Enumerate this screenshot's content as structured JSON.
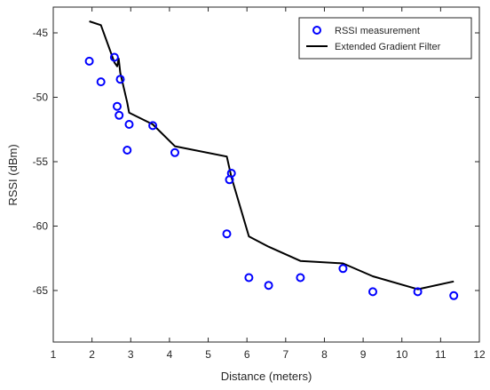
{
  "chart_data": {
    "type": "scatter",
    "xlabel": "Distance (meters)",
    "ylabel": "RSSI (dBm)",
    "xlim": [
      1,
      12
    ],
    "ylim": [
      -69,
      -43
    ],
    "xticks": [
      1,
      2,
      3,
      4,
      5,
      6,
      7,
      8,
      9,
      10,
      11,
      12
    ],
    "yticks": [
      -45,
      -50,
      -55,
      -60,
      -65
    ],
    "grid": false,
    "legend_position": "top-right",
    "series": [
      {
        "name": "RSSI measurement",
        "kind": "markers",
        "marker": "circle",
        "color": "#0000ff",
        "points": [
          [
            1.93,
            -47.2
          ],
          [
            2.23,
            -48.8
          ],
          [
            2.58,
            -46.9
          ],
          [
            2.65,
            -50.7
          ],
          [
            2.7,
            -51.4
          ],
          [
            2.73,
            -48.6
          ],
          [
            2.91,
            -54.1
          ],
          [
            2.96,
            -52.1
          ],
          [
            3.57,
            -52.2
          ],
          [
            4.14,
            -54.3
          ],
          [
            5.48,
            -60.6
          ],
          [
            5.55,
            -56.4
          ],
          [
            5.6,
            -55.9
          ],
          [
            6.05,
            -64.0
          ],
          [
            6.56,
            -64.6
          ],
          [
            7.38,
            -64.0
          ],
          [
            8.48,
            -63.3
          ],
          [
            9.25,
            -65.1
          ],
          [
            10.41,
            -65.1
          ],
          [
            11.34,
            -65.4
          ]
        ]
      },
      {
        "name": "Extended Gradient Filter",
        "kind": "line",
        "color": "#000000",
        "points": [
          [
            1.93,
            -44.1
          ],
          [
            2.23,
            -44.4
          ],
          [
            2.58,
            -47.3
          ],
          [
            2.65,
            -47.6
          ],
          [
            2.69,
            -47.0
          ],
          [
            2.73,
            -48.1
          ],
          [
            2.91,
            -50.4
          ],
          [
            2.96,
            -51.2
          ],
          [
            3.57,
            -52.1
          ],
          [
            4.14,
            -53.8
          ],
          [
            5.48,
            -54.6
          ],
          [
            5.6,
            -56.2
          ],
          [
            6.05,
            -60.8
          ],
          [
            6.56,
            -61.6
          ],
          [
            7.38,
            -62.7
          ],
          [
            8.48,
            -62.9
          ],
          [
            9.25,
            -63.9
          ],
          [
            10.41,
            -64.9
          ],
          [
            11.34,
            -64.3
          ]
        ]
      }
    ]
  }
}
